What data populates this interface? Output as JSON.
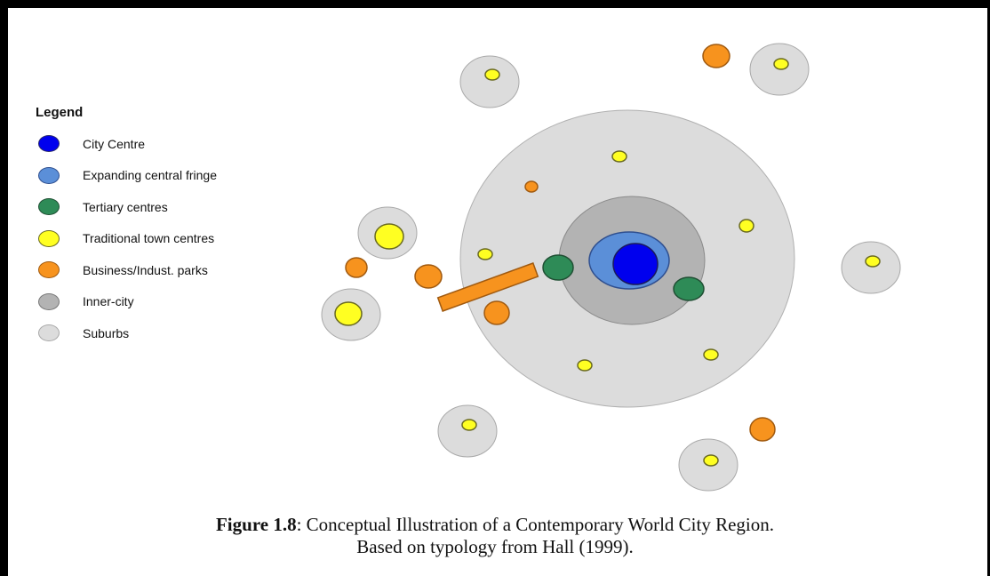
{
  "legend": {
    "title": "Legend",
    "items": [
      {
        "key": "city-centre",
        "label": "City Centre",
        "fill": "#0000ee",
        "stroke": "#2a2a6a"
      },
      {
        "key": "expanding-central-fringe",
        "label": "Expanding central fringe",
        "fill": "#5b8fd8",
        "stroke": "#2f4f8f"
      },
      {
        "key": "tertiary-centres",
        "label": "Tertiary centres",
        "fill": "#2e8b57",
        "stroke": "#1f4f33"
      },
      {
        "key": "traditional-town-centres",
        "label": "Traditional town centres",
        "fill": "#ffff22",
        "stroke": "#6a6a20"
      },
      {
        "key": "business-indust-parks",
        "label": "Business/Indust. parks",
        "fill": "#f7931e",
        "stroke": "#a05a10"
      },
      {
        "key": "inner-city",
        "label": "Inner-city",
        "fill": "#b3b3b3",
        "stroke": "#777777"
      },
      {
        "key": "suburbs",
        "label": "Suburbs",
        "fill": "#dcdcdc",
        "stroke": "#a9a9a9"
      }
    ]
  },
  "caption": {
    "figure_label": "Figure 1.8",
    "line1": ": Conceptual Illustration of a Contemporary World City Region.",
    "line2": "Based on typology from Hall (1999)."
  }
}
